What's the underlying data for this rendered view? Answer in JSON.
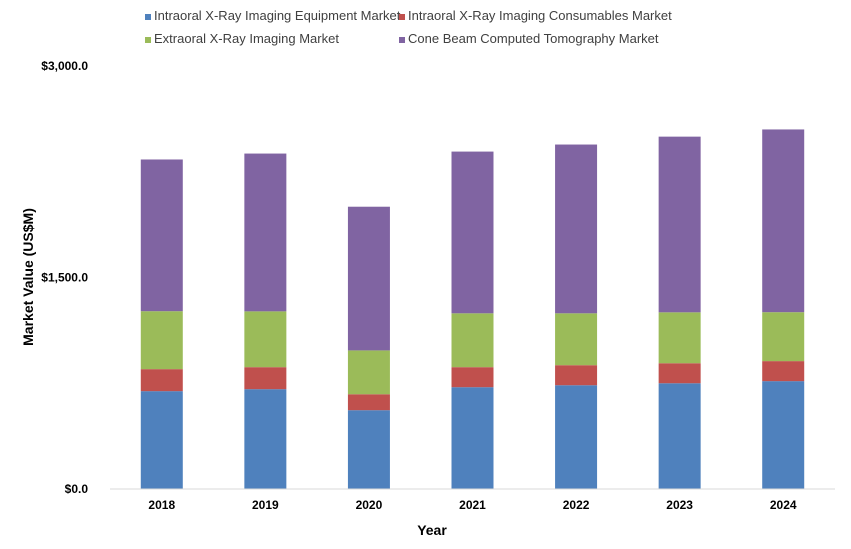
{
  "chart_data": {
    "type": "bar",
    "stacked": true,
    "title": "",
    "xlabel": "Year",
    "ylabel": "Market Value (US$M)",
    "ylim": [
      0,
      3000
    ],
    "yticks": [
      0,
      1500,
      3000
    ],
    "ytick_labels": [
      "$0.0",
      "$1,500.0",
      "$3,000.0"
    ],
    "grid": false,
    "legend_position": "top",
    "categories": [
      "2018",
      "2019",
      "2020",
      "2021",
      "2022",
      "2023",
      "2024"
    ],
    "series": [
      {
        "name": "Intraoral X-Ray Imaging Equipment Market",
        "color": "#4F81BD",
        "values": [
          694,
          708,
          559,
          722,
          736,
          750,
          765
        ]
      },
      {
        "name": "Intraoral X-Ray Imaging Consumables Market",
        "color": "#C0504D",
        "values": [
          156,
          156,
          113,
          142,
          142,
          142,
          142
        ]
      },
      {
        "name": "Extraoral X-Ray Imaging Market",
        "color": "#9BBB59",
        "values": [
          411,
          396,
          311,
          382,
          368,
          361,
          347
        ]
      },
      {
        "name": "Cone Beam Computed Tomography Market",
        "color": "#8064A2",
        "values": [
          1076,
          1119,
          1019,
          1147,
          1197,
          1246,
          1296
        ]
      }
    ]
  }
}
